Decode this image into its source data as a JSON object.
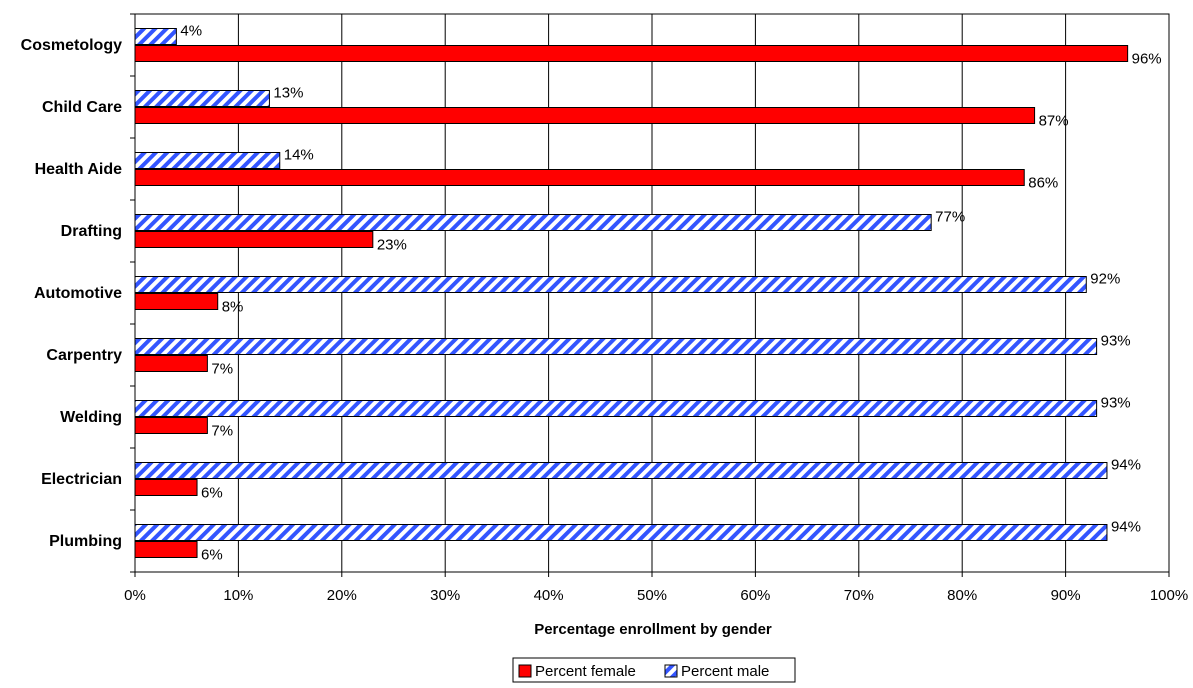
{
  "chart_data": {
    "type": "bar",
    "orientation": "horizontal",
    "title": "",
    "xlabel": "Percentage enrollment by gender",
    "ylabel": "",
    "xlim": [
      0,
      100
    ],
    "x_ticks": [
      "0%",
      "10%",
      "20%",
      "30%",
      "40%",
      "50%",
      "60%",
      "70%",
      "80%",
      "90%",
      "100%"
    ],
    "grid": "vertical gridlines on",
    "legend_position": "bottom",
    "categories": [
      "Cosmetology",
      "Child Care",
      "Health Aide",
      "Drafting",
      "Automotive",
      "Carpentry",
      "Welding",
      "Electrician",
      "Plumbing"
    ],
    "series": [
      {
        "name": "Percent female",
        "color": "#ff0000",
        "pattern": "solid",
        "values": [
          96,
          87,
          86,
          23,
          8,
          7,
          7,
          6,
          6
        ],
        "labels": [
          "96%",
          "87%",
          "86%",
          "23%",
          "8%",
          "7%",
          "7%",
          "6%",
          "6%"
        ]
      },
      {
        "name": "Percent male",
        "color": "#3355ff",
        "pattern": "diagonal-stripes",
        "values": [
          4,
          13,
          14,
          77,
          92,
          93,
          93,
          94,
          94
        ],
        "labels": [
          "4%",
          "13%",
          "14%",
          "77%",
          "92%",
          "93%",
          "93%",
          "94%",
          "94%"
        ]
      }
    ]
  }
}
